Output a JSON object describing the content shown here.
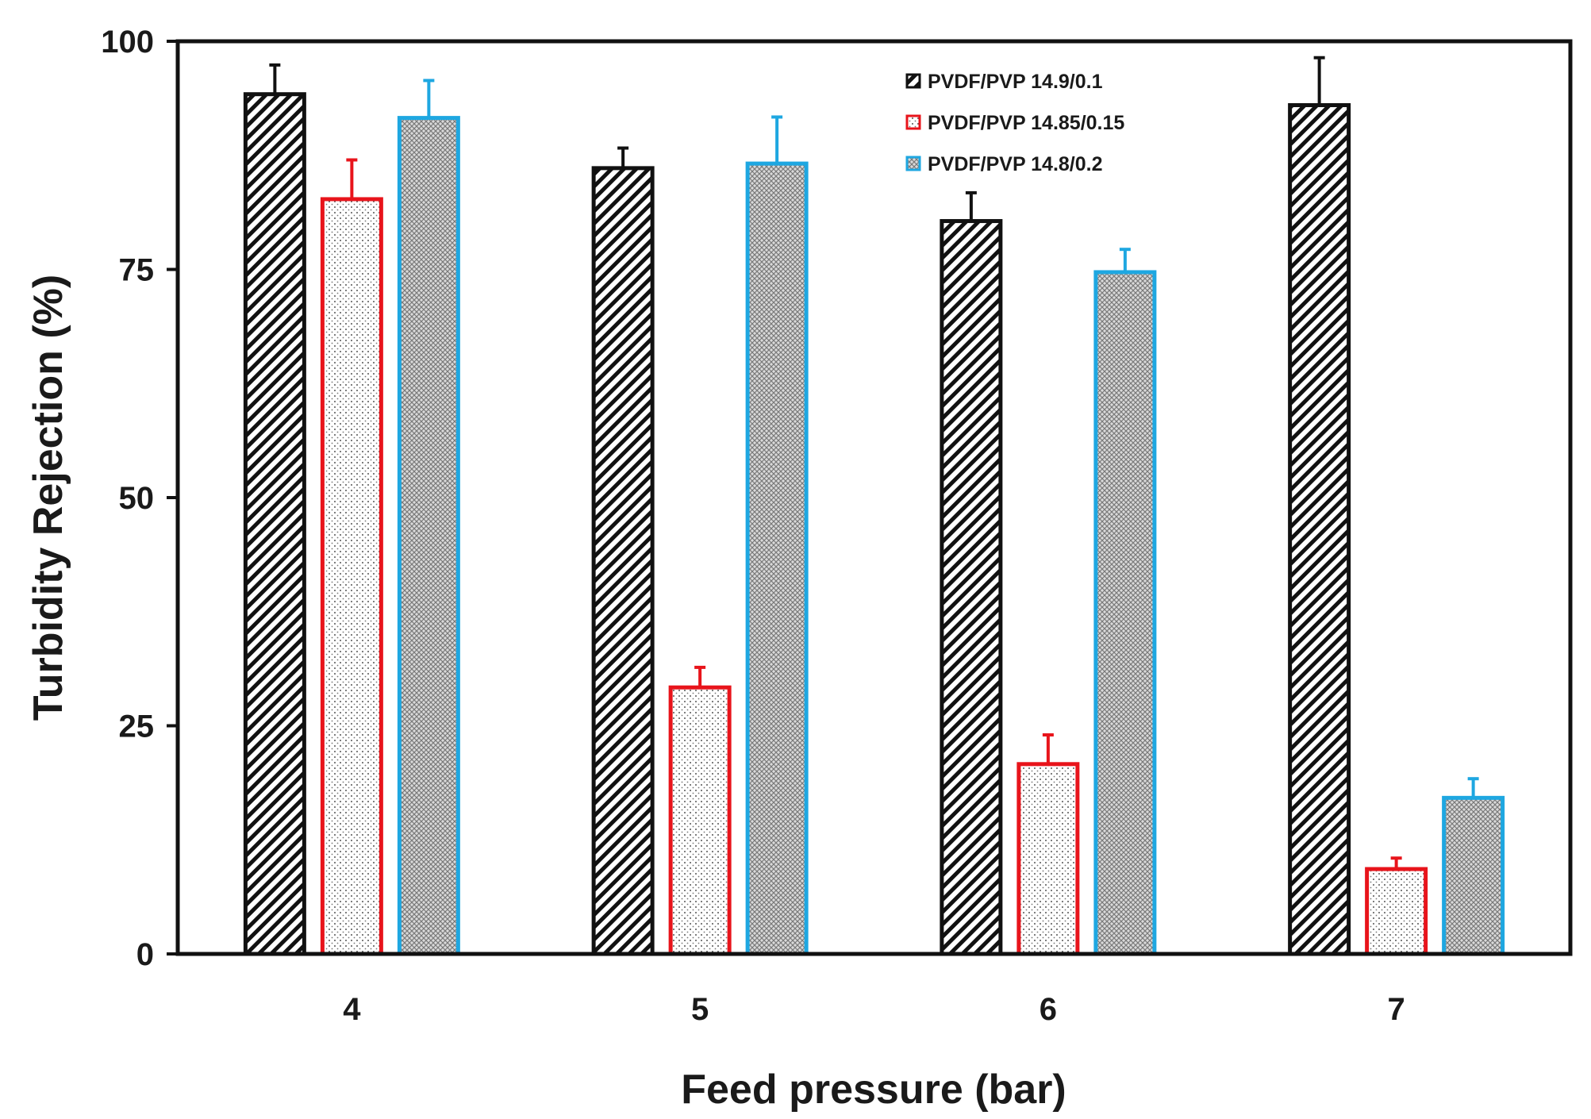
{
  "chart_data": {
    "type": "bar",
    "title": "",
    "xlabel": "Feed pressure (bar)",
    "ylabel": "Turbidity Rejection (%)",
    "ylim": [
      0,
      100
    ],
    "yticks": [
      "0",
      "25",
      "50",
      "75",
      "100"
    ],
    "categories": [
      "4",
      "5",
      "6",
      "7"
    ],
    "legend_position": "top-right",
    "grid": false,
    "series": [
      {
        "name": "PVDF/PVP 14.9/0.1",
        "values": [
          94.2,
          86.1,
          80.3,
          93.0
        ],
        "errors": [
          3.2,
          2.2,
          3.1,
          5.2
        ],
        "color": "#111111",
        "pattern": "diagonal-hatch"
      },
      {
        "name": "PVDF/PVP 14.85/0.15",
        "values": [
          82.7,
          29.2,
          20.8,
          9.3
        ],
        "errors": [
          4.3,
          2.2,
          3.2,
          1.2
        ],
        "color": "#e8141b",
        "pattern": "dots"
      },
      {
        "name": "PVDF/PVP 14.8/0.2",
        "values": [
          91.6,
          86.6,
          74.7,
          17.1
        ],
        "errors": [
          4.1,
          5.1,
          2.5,
          2.1
        ],
        "color": "#1ea7e1",
        "pattern": "crosshatch"
      }
    ]
  }
}
